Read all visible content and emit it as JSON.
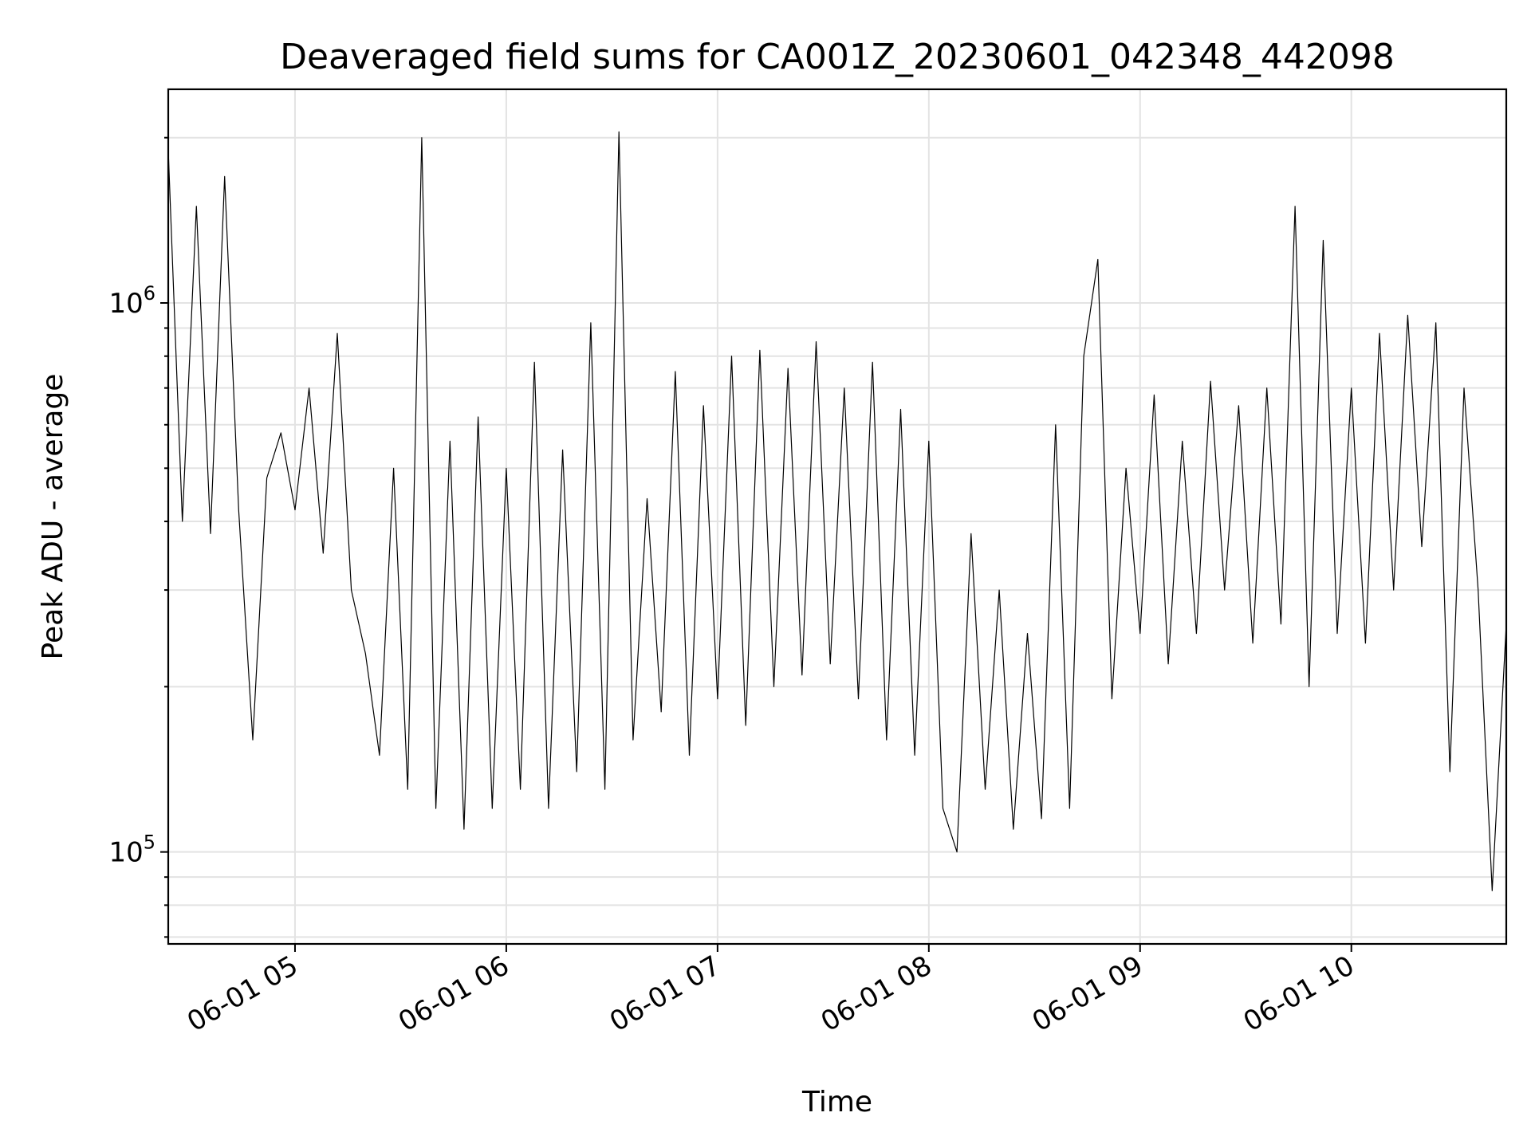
{
  "chart_data": {
    "type": "line",
    "title": "Deaveraged field sums for CA001Z_20230601_042348_442098",
    "xlabel": "Time",
    "ylabel": "Peak ADU - average",
    "yscale": "log",
    "ylim": [
      68000,
      2450000
    ],
    "xlim": [
      "2023-06-01 04:24",
      "2023-06-01 10:44"
    ],
    "grid": true,
    "x_ticks": [
      {
        "value": "2023-06-01 05:00",
        "label": "06-01 05"
      },
      {
        "value": "2023-06-01 06:00",
        "label": "06-01 06"
      },
      {
        "value": "2023-06-01 07:00",
        "label": "06-01 07"
      },
      {
        "value": "2023-06-01 08:00",
        "label": "06-01 08"
      },
      {
        "value": "2023-06-01 09:00",
        "label": "06-01 09"
      },
      {
        "value": "2023-06-01 10:00",
        "label": "06-01 10"
      }
    ],
    "y_ticks": [
      {
        "value": 100000,
        "base": "10",
        "exp": "5"
      },
      {
        "value": 1000000,
        "base": "10",
        "exp": "6"
      }
    ],
    "series": [
      {
        "color": "#000000",
        "x": [
          "2023-06-01 04:24",
          "2023-06-01 04:28",
          "2023-06-01 04:32",
          "2023-06-01 04:36",
          "2023-06-01 04:40",
          "2023-06-01 04:44",
          "2023-06-01 04:48",
          "2023-06-01 04:52",
          "2023-06-01 04:56",
          "2023-06-01 05:00",
          "2023-06-01 05:04",
          "2023-06-01 05:08",
          "2023-06-01 05:12",
          "2023-06-01 05:16",
          "2023-06-01 05:20",
          "2023-06-01 05:24",
          "2023-06-01 05:28",
          "2023-06-01 05:32",
          "2023-06-01 05:36",
          "2023-06-01 05:40",
          "2023-06-01 05:44",
          "2023-06-01 05:48",
          "2023-06-01 05:52",
          "2023-06-01 05:56",
          "2023-06-01 06:00",
          "2023-06-01 06:04",
          "2023-06-01 06:08",
          "2023-06-01 06:12",
          "2023-06-01 06:16",
          "2023-06-01 06:20",
          "2023-06-01 06:24",
          "2023-06-01 06:28",
          "2023-06-01 06:32",
          "2023-06-01 06:36",
          "2023-06-01 06:40",
          "2023-06-01 06:44",
          "2023-06-01 06:48",
          "2023-06-01 06:52",
          "2023-06-01 06:56",
          "2023-06-01 07:00",
          "2023-06-01 07:04",
          "2023-06-01 07:08",
          "2023-06-01 07:12",
          "2023-06-01 07:16",
          "2023-06-01 07:20",
          "2023-06-01 07:24",
          "2023-06-01 07:28",
          "2023-06-01 07:32",
          "2023-06-01 07:36",
          "2023-06-01 07:40",
          "2023-06-01 07:44",
          "2023-06-01 07:48",
          "2023-06-01 07:52",
          "2023-06-01 07:56",
          "2023-06-01 08:00",
          "2023-06-01 08:04",
          "2023-06-01 08:08",
          "2023-06-01 08:12",
          "2023-06-01 08:16",
          "2023-06-01 08:20",
          "2023-06-01 08:24",
          "2023-06-01 08:28",
          "2023-06-01 08:32",
          "2023-06-01 08:36",
          "2023-06-01 08:40",
          "2023-06-01 08:44",
          "2023-06-01 08:48",
          "2023-06-01 08:52",
          "2023-06-01 08:56",
          "2023-06-01 09:00",
          "2023-06-01 09:04",
          "2023-06-01 09:08",
          "2023-06-01 09:12",
          "2023-06-01 09:16",
          "2023-06-01 09:20",
          "2023-06-01 09:24",
          "2023-06-01 09:28",
          "2023-06-01 09:32",
          "2023-06-01 09:36",
          "2023-06-01 09:40",
          "2023-06-01 09:44",
          "2023-06-01 09:48",
          "2023-06-01 09:52",
          "2023-06-01 09:56",
          "2023-06-01 10:00",
          "2023-06-01 10:04",
          "2023-06-01 10:08",
          "2023-06-01 10:12",
          "2023-06-01 10:16",
          "2023-06-01 10:20",
          "2023-06-01 10:24",
          "2023-06-01 10:28",
          "2023-06-01 10:32",
          "2023-06-01 10:36",
          "2023-06-01 10:40",
          "2023-06-01 10:44"
        ],
        "values": [
          1900000,
          400000,
          1500000,
          380000,
          1700000,
          420000,
          160000,
          480000,
          580000,
          420000,
          700000,
          350000,
          880000,
          300000,
          230000,
          150000,
          500000,
          130000,
          2000000,
          120000,
          560000,
          110000,
          620000,
          120000,
          500000,
          130000,
          780000,
          120000,
          540000,
          140000,
          920000,
          130000,
          2050000,
          160000,
          440000,
          180000,
          750000,
          150000,
          650000,
          190000,
          800000,
          170000,
          820000,
          200000,
          760000,
          210000,
          850000,
          220000,
          700000,
          190000,
          780000,
          160000,
          640000,
          150000,
          560000,
          120000,
          100000,
          380000,
          130000,
          300000,
          110000,
          250000,
          115000,
          600000,
          120000,
          800000,
          1200000,
          190000,
          500000,
          250000,
          680000,
          220000,
          560000,
          250000,
          720000,
          300000,
          650000,
          240000,
          700000,
          260000,
          1500000,
          200000,
          1300000,
          250000,
          700000,
          240000,
          880000,
          300000,
          950000,
          360000,
          920000,
          140000,
          700000,
          300000,
          85000,
          260000
        ]
      }
    ]
  }
}
